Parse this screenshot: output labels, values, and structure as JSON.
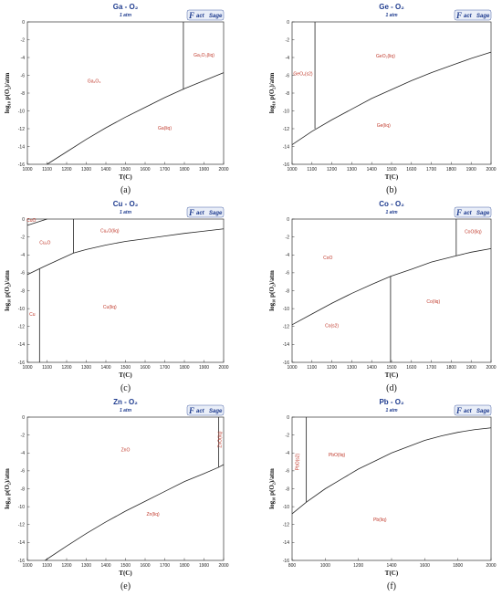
{
  "logo": {
    "brand_initial": "F",
    "brand_rest": "act",
    "brand_tail": "Sage",
    "color": "#1f3c8f"
  },
  "colors": {
    "title": "#1f3c8f",
    "region_label": "#c0392b",
    "curve": "#222222"
  },
  "chart_data": [
    {
      "type": "line",
      "panel_label": "(a)",
      "title": "Ga - O₂",
      "subtitle": "1 atm",
      "xlabel": "T(C)",
      "ylabel": "log₁₀ p(O₂)/atm",
      "xlim": [
        1000,
        2000
      ],
      "ylim": [
        -16,
        0
      ],
      "xticks": [
        1000,
        1100,
        1200,
        1300,
        1400,
        1500,
        1600,
        1700,
        1800,
        1900,
        2000
      ],
      "yticks": [
        -16,
        -14,
        -12,
        -10,
        -8,
        -6,
        -4,
        -2,
        0
      ],
      "series": [
        {
          "values": [
            [
              1100,
              -16.0
            ],
            [
              1200,
              -14.6
            ],
            [
              1300,
              -13.2
            ],
            [
              1400,
              -11.9
            ],
            [
              1500,
              -10.7
            ],
            [
              1600,
              -9.6
            ],
            [
              1700,
              -8.5
            ],
            [
              1800,
              -7.5
            ],
            [
              1900,
              -6.6
            ],
            [
              2000,
              -5.7
            ]
          ]
        },
        {
          "values": [
            [
              1795,
              0
            ],
            [
              1795,
              -7.6
            ]
          ]
        }
      ],
      "regions": [
        {
          "text": "Ga₂O₃",
          "x": 1340,
          "y": -6.8
        },
        {
          "text": "Ga₂O₃(liq)",
          "x": 1900,
          "y": -3.9
        },
        {
          "text": "Ga(liq)",
          "x": 1700,
          "y": -12.1
        }
      ]
    },
    {
      "type": "line",
      "panel_label": "(b)",
      "title": "Ge - O₂",
      "subtitle": "1 atm",
      "xlabel": "T(C)",
      "ylabel": "log₁₀ p(O₂)/atm",
      "xlim": [
        1000,
        2000
      ],
      "ylim": [
        -16,
        0
      ],
      "xticks": [
        1000,
        1100,
        1200,
        1300,
        1400,
        1500,
        1600,
        1700,
        1800,
        1900,
        2000
      ],
      "yticks": [
        -16,
        -14,
        -12,
        -10,
        -8,
        -6,
        -4,
        -2,
        0
      ],
      "series": [
        {
          "values": [
            [
              1000,
              -13.8
            ],
            [
              1100,
              -12.3
            ],
            [
              1200,
              -11.0
            ],
            [
              1300,
              -9.8
            ],
            [
              1400,
              -8.6
            ],
            [
              1500,
              -7.6
            ],
            [
              1600,
              -6.6
            ],
            [
              1700,
              -5.7
            ],
            [
              1800,
              -4.9
            ],
            [
              1900,
              -4.1
            ],
            [
              2000,
              -3.4
            ]
          ]
        },
        {
          "values": [
            [
              1115,
              0
            ],
            [
              1115,
              -12.0
            ]
          ]
        }
      ],
      "regions": [
        {
          "text": "GeO₂(s2)",
          "x": 1055,
          "y": -6.0
        },
        {
          "text": "GeO₂(liq)",
          "x": 1470,
          "y": -4.0
        },
        {
          "text": "Ge(liq)",
          "x": 1460,
          "y": -11.8
        }
      ]
    },
    {
      "type": "line",
      "panel_label": "(c)",
      "title": "Cu - O₂",
      "subtitle": "1 atm",
      "xlabel": "T(C)",
      "ylabel": "log₁₀ p(O₂)/atm",
      "xlim": [
        1000,
        2000
      ],
      "ylim": [
        -16,
        0
      ],
      "xticks": [
        1000,
        1100,
        1200,
        1300,
        1400,
        1500,
        1600,
        1700,
        1800,
        1900,
        2000
      ],
      "yticks": [
        -16,
        -14,
        -12,
        -10,
        -8,
        -6,
        -4,
        -2,
        0
      ],
      "series": [
        {
          "values": [
            [
              1000,
              -6.2
            ],
            [
              1085,
              -5.3
            ],
            [
              1235,
              -3.8
            ],
            [
              1300,
              -3.4
            ],
            [
              1400,
              -2.9
            ],
            [
              1500,
              -2.5
            ],
            [
              1600,
              -2.2
            ],
            [
              1700,
              -1.9
            ],
            [
              1800,
              -1.6
            ],
            [
              1900,
              -1.35
            ],
            [
              2000,
              -1.1
            ]
          ]
        },
        {
          "values": [
            [
              1000,
              -0.7
            ],
            [
              1100,
              0.0
            ]
          ]
        },
        {
          "values": [
            [
              1235,
              0
            ],
            [
              1235,
              -3.8
            ]
          ]
        },
        {
          "values": [
            [
              1062,
              -5.5
            ],
            [
              1062,
              -16
            ]
          ]
        }
      ],
      "regions": [
        {
          "text": "CuO",
          "x": 1020,
          "y": -0.3
        },
        {
          "text": "Cu₂O",
          "x": 1090,
          "y": -2.8
        },
        {
          "text": "Cu₂O(liq)",
          "x": 1420,
          "y": -1.5
        },
        {
          "text": "Cu(liq)",
          "x": 1420,
          "y": -10.0
        },
        {
          "text": "Cu",
          "x": 1025,
          "y": -10.8
        }
      ]
    },
    {
      "type": "line",
      "panel_label": "(d)",
      "title": "Co - O₂",
      "subtitle": "1 atm",
      "xlabel": "T(C)",
      "ylabel": "log₁₀ p(O₂)/atm",
      "xlim": [
        1000,
        2000
      ],
      "ylim": [
        -16,
        0
      ],
      "xticks": [
        1000,
        1100,
        1200,
        1300,
        1400,
        1500,
        1600,
        1700,
        1800,
        1900,
        2000
      ],
      "yticks": [
        -16,
        -14,
        -12,
        -10,
        -8,
        -6,
        -4,
        -2,
        0
      ],
      "series": [
        {
          "values": [
            [
              1000,
              -11.8
            ],
            [
              1100,
              -10.6
            ],
            [
              1200,
              -9.4
            ],
            [
              1300,
              -8.3
            ],
            [
              1400,
              -7.3
            ],
            [
              1495,
              -6.4
            ],
            [
              1600,
              -5.6
            ],
            [
              1700,
              -4.8
            ],
            [
              1825,
              -4.1
            ],
            [
              1900,
              -3.7
            ],
            [
              2000,
              -3.3
            ]
          ]
        },
        {
          "values": [
            [
              1495,
              -6.4
            ],
            [
              1495,
              -16
            ]
          ]
        },
        {
          "values": [
            [
              1825,
              0
            ],
            [
              1825,
              -4.1
            ]
          ]
        }
      ],
      "regions": [
        {
          "text": "CoO",
          "x": 1180,
          "y": -4.5
        },
        {
          "text": "CoO(liq)",
          "x": 1910,
          "y": -1.6
        },
        {
          "text": "Co(liq)",
          "x": 1710,
          "y": -9.4
        },
        {
          "text": "Co(s2)",
          "x": 1200,
          "y": -12.1
        }
      ]
    },
    {
      "type": "line",
      "panel_label": "(e)",
      "title": "Zn - O₂",
      "subtitle": "1 atm",
      "xlabel": "T(C)",
      "ylabel": "log₁₀ p(O₂)/atm",
      "xlim": [
        1000,
        2000
      ],
      "ylim": [
        -16,
        0
      ],
      "xticks": [
        1000,
        1100,
        1200,
        1300,
        1400,
        1500,
        1600,
        1700,
        1800,
        1900,
        2000
      ],
      "yticks": [
        -16,
        -14,
        -12,
        -10,
        -8,
        -6,
        -4,
        -2,
        0
      ],
      "series": [
        {
          "values": [
            [
              1090,
              -16.0
            ],
            [
              1200,
              -14.4
            ],
            [
              1300,
              -13.0
            ],
            [
              1400,
              -11.7
            ],
            [
              1500,
              -10.5
            ],
            [
              1600,
              -9.4
            ],
            [
              1700,
              -8.3
            ],
            [
              1800,
              -7.2
            ],
            [
              1900,
              -6.3
            ],
            [
              1975,
              -5.6
            ],
            [
              2000,
              -5.3
            ]
          ]
        },
        {
          "values": [
            [
              1975,
              0
            ],
            [
              1975,
              -5.6
            ]
          ]
        }
      ],
      "regions": [
        {
          "text": "ZnO",
          "x": 1500,
          "y": -3.8
        },
        {
          "text": "Zn(liq)",
          "x": 1640,
          "y": -11.0
        },
        {
          "text": "ZnO(liq)",
          "x": 1988,
          "y": -2.5,
          "rotate": -90
        }
      ]
    },
    {
      "type": "line",
      "panel_label": "(f)",
      "title": "Pb - O₂",
      "subtitle": "1 atm",
      "xlabel": "T(C)",
      "ylabel": "log₁₀ p(O₂)/atm",
      "xlim": [
        800,
        2000
      ],
      "ylim": [
        -16,
        0
      ],
      "xticks": [
        800,
        1000,
        1200,
        1400,
        1600,
        1800,
        2000
      ],
      "yticks": [
        -16,
        -14,
        -12,
        -10,
        -8,
        -6,
        -4,
        -2,
        0
      ],
      "series": [
        {
          "values": [
            [
              800,
              -10.8
            ],
            [
              886,
              -9.5
            ],
            [
              1000,
              -8.0
            ],
            [
              1100,
              -6.9
            ],
            [
              1200,
              -5.8
            ],
            [
              1300,
              -4.9
            ],
            [
              1400,
              -4.0
            ],
            [
              1500,
              -3.3
            ],
            [
              1600,
              -2.6
            ],
            [
              1700,
              -2.1
            ],
            [
              1800,
              -1.7
            ],
            [
              1900,
              -1.4
            ],
            [
              2000,
              -1.2
            ]
          ]
        },
        {
          "values": [
            [
              886,
              0
            ],
            [
              886,
              -9.5
            ]
          ]
        }
      ],
      "regions": [
        {
          "text": "PbO(liq)",
          "x": 1070,
          "y": -4.4
        },
        {
          "text": "PbO(s2)",
          "x": 840,
          "y": -5.0,
          "rotate": -90
        },
        {
          "text": "Pb(liq)",
          "x": 1330,
          "y": -11.6
        }
      ]
    }
  ]
}
